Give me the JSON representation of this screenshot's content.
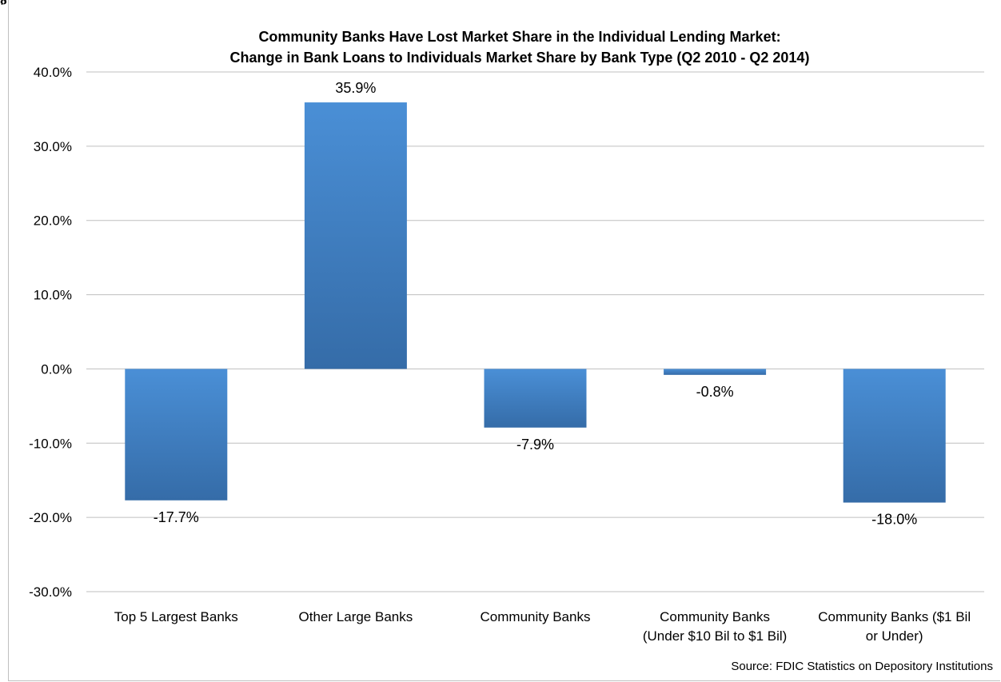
{
  "chart_data": {
    "type": "bar",
    "title_line1": "Community Banks Have Lost Market Share in the Individual Lending Market:",
    "title_line2": "Change in Bank Loans to Individuals Market Share by Bank Type (Q2 2010 - Q2 2014)",
    "categories": [
      [
        "Top 5 Largest Banks"
      ],
      [
        "Other Large Banks"
      ],
      [
        "Community Banks"
      ],
      [
        "Community Banks",
        "(Under $10 Bil to $1 Bil)"
      ],
      [
        "Community Banks ($1 Bil",
        "or Under)"
      ]
    ],
    "values": [
      -17.7,
      35.9,
      -7.9,
      -0.8,
      -18.0
    ],
    "data_labels": [
      "-17.7%",
      "35.9%",
      "-7.9%",
      "-0.8%",
      "-18.0%"
    ],
    "ylim": [
      -30,
      40
    ],
    "yticks": [
      40,
      30,
      20,
      10,
      0,
      -10,
      -20,
      -30
    ],
    "ytick_labels": [
      "40.0%",
      "30.0%",
      "20.0%",
      "10.0%",
      "0.0%",
      "-10.0%",
      "-20.0%",
      "-30.0%"
    ],
    "grid": true,
    "bar_color_top": "#4a8fd6",
    "bar_color_bottom": "#356ca8",
    "gridline_color": "#bfbfbf",
    "source": "Source: FDIC Statistics on Depository Institutions"
  },
  "figure_label_fragment": "g"
}
